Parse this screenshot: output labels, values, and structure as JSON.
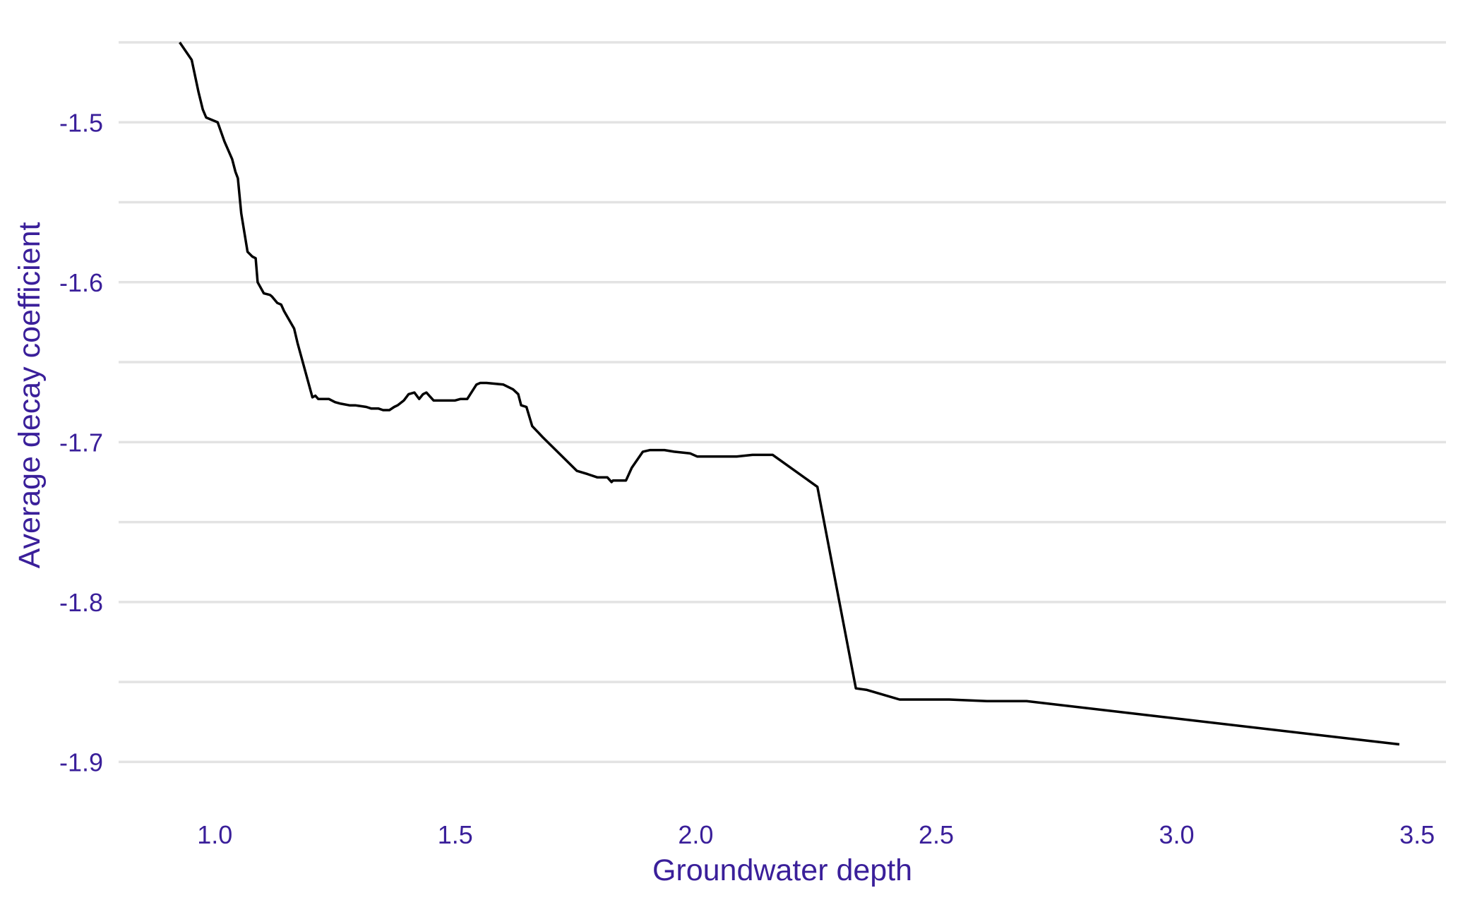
{
  "chart_data": {
    "type": "line",
    "title": "",
    "xlabel": "Groundwater depth",
    "ylabel": "Average decay coefficient",
    "xlim": [
      0.8,
      3.56
    ],
    "ylim": [
      -1.925,
      -1.45
    ],
    "x_ticks": [
      1.0,
      1.5,
      2.0,
      2.5,
      3.0,
      3.5
    ],
    "x_tick_labels": [
      "1.0",
      "1.5",
      "2.0",
      "2.5",
      "3.0",
      "3.5"
    ],
    "y_ticks": [
      -1.5,
      -1.6,
      -1.7,
      -1.8,
      -1.9
    ],
    "y_tick_labels": [
      "-1.5",
      "-1.6",
      "-1.7",
      "-1.8",
      "-1.9"
    ],
    "y_minor_gridlines": [
      -1.45,
      -1.55,
      -1.65,
      -1.75,
      -1.85
    ],
    "grid": "horizontal",
    "legend": "none",
    "line_color": "#000000",
    "label_color": "#3a1f9a",
    "series": [
      {
        "x": [
          0.927,
          0.952,
          0.966,
          0.975,
          0.982,
          1.006,
          1.02,
          1.036,
          1.043,
          1.048,
          1.055,
          1.068,
          1.078,
          1.085,
          1.089,
          1.102,
          1.115,
          1.119,
          1.13,
          1.138,
          1.144,
          1.165,
          1.172,
          1.203,
          1.209,
          1.215,
          1.22,
          1.237,
          1.25,
          1.262,
          1.28,
          1.292,
          1.315,
          1.325,
          1.34,
          1.35,
          1.363,
          1.373,
          1.38,
          1.393,
          1.403,
          1.415,
          1.425,
          1.433,
          1.44,
          1.455,
          1.468,
          1.485,
          1.499,
          1.511,
          1.525,
          1.544,
          1.552,
          1.565,
          1.6,
          1.62,
          1.631,
          1.637,
          1.648,
          1.66,
          1.682,
          1.753,
          1.775,
          1.795,
          1.816,
          1.825,
          1.828,
          1.838,
          1.855,
          1.867,
          1.89,
          1.905,
          1.935,
          1.955,
          1.988,
          2.003,
          2.03,
          2.055,
          2.085,
          2.118,
          2.16,
          2.253,
          2.333,
          2.356,
          2.424,
          2.527,
          2.608,
          2.688,
          3.463
        ],
        "y": [
          -1.45,
          -1.461,
          -1.481,
          -1.492,
          -1.497,
          -1.5,
          -1.512,
          -1.523,
          -1.531,
          -1.535,
          -1.557,
          -1.581,
          -1.584,
          -1.585,
          -1.6,
          -1.607,
          -1.608,
          -1.609,
          -1.613,
          -1.614,
          -1.618,
          -1.629,
          -1.638,
          -1.672,
          -1.671,
          -1.673,
          -1.673,
          -1.673,
          -1.675,
          -1.676,
          -1.677,
          -1.677,
          -1.678,
          -1.679,
          -1.679,
          -1.68,
          -1.68,
          -1.678,
          -1.677,
          -1.674,
          -1.67,
          -1.669,
          -1.673,
          -1.67,
          -1.669,
          -1.674,
          -1.674,
          -1.674,
          -1.674,
          -1.673,
          -1.673,
          -1.664,
          -1.663,
          -1.663,
          -1.664,
          -1.667,
          -1.67,
          -1.677,
          -1.678,
          -1.69,
          -1.697,
          -1.718,
          -1.72,
          -1.722,
          -1.722,
          -1.725,
          -1.724,
          -1.724,
          -1.724,
          -1.716,
          -1.706,
          -1.705,
          -1.705,
          -1.706,
          -1.707,
          -1.709,
          -1.709,
          -1.709,
          -1.709,
          -1.708,
          -1.708,
          -1.728,
          -1.854,
          -1.855,
          -1.861,
          -1.861,
          -1.862,
          -1.862,
          -1.889
        ]
      }
    ]
  }
}
